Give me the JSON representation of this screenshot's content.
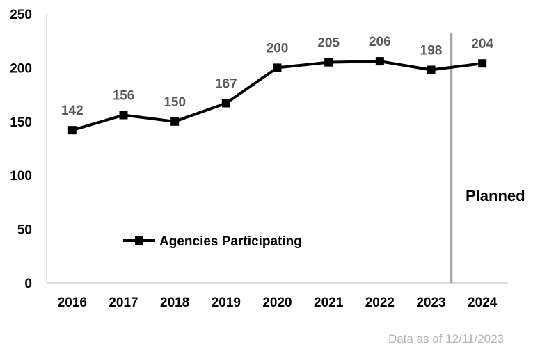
{
  "chart_data": {
    "type": "line",
    "categories": [
      "2016",
      "2017",
      "2018",
      "2019",
      "2020",
      "2021",
      "2022",
      "2023",
      "2024"
    ],
    "series": [
      {
        "name": "Agencies Participating",
        "values": [
          142,
          156,
          150,
          167,
          200,
          205,
          206,
          198,
          204
        ],
        "color": "#000000",
        "marker": "square"
      }
    ],
    "ylim": [
      0,
      250
    ],
    "yticks": [
      0,
      50,
      100,
      150,
      200,
      250
    ],
    "grid": false,
    "legend": "inside-bottom-left",
    "divider": {
      "label": "Planned",
      "between": [
        "2023",
        "2024"
      ],
      "color": "#a6a6a6"
    },
    "data_label_color": "#595959"
  },
  "footnote": "Data as of 12/11/2023"
}
